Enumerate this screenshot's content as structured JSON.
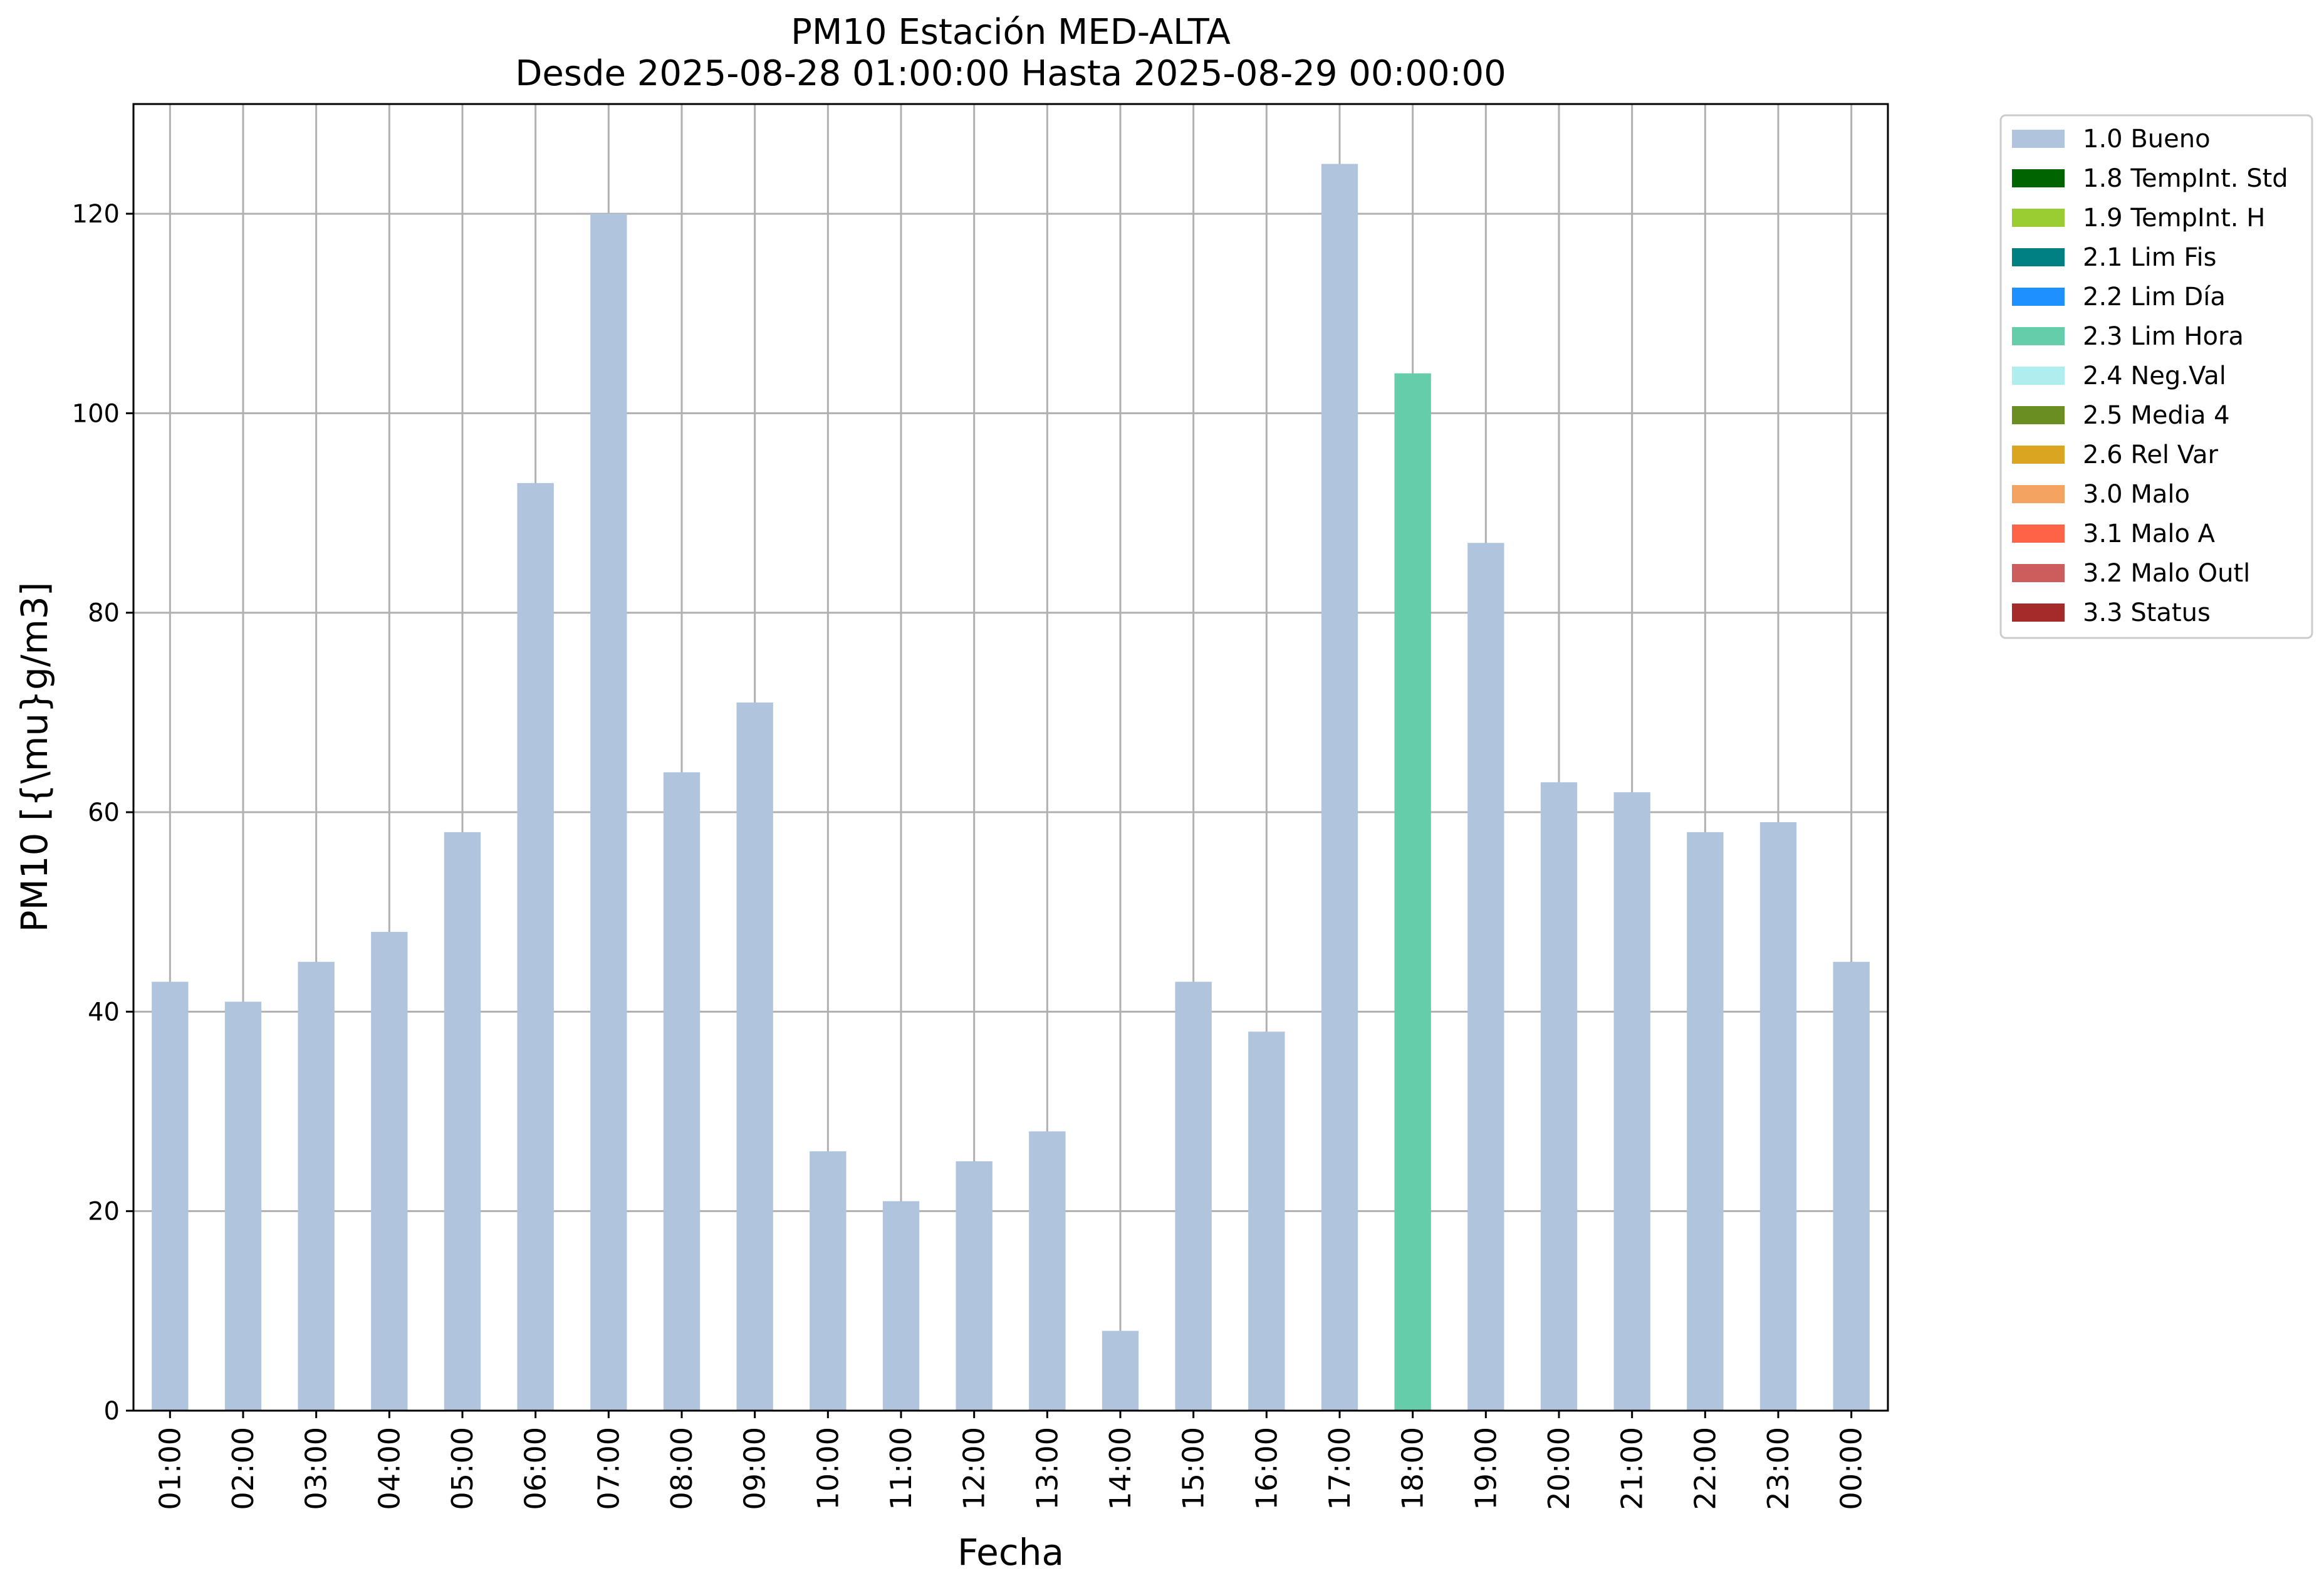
{
  "chart_data": {
    "type": "bar",
    "title": "PM10 Estación MED-ALTA",
    "subtitle": "Desde 2025-08-28 01:00:00 Hasta 2025-08-29 00:00:00",
    "xlabel": "Fecha",
    "ylabel": "PM10 [{\\mu}g/m3]",
    "ylim": [
      0,
      131
    ],
    "yticks": [
      0,
      20,
      40,
      60,
      80,
      100,
      120
    ],
    "grid": true,
    "legend_position": "outside-right-top",
    "categories": [
      "01:00",
      "02:00",
      "03:00",
      "04:00",
      "05:00",
      "06:00",
      "07:00",
      "08:00",
      "09:00",
      "10:00",
      "11:00",
      "12:00",
      "13:00",
      "14:00",
      "15:00",
      "16:00",
      "17:00",
      "18:00",
      "19:00",
      "20:00",
      "21:00",
      "22:00",
      "23:00",
      "00:00"
    ],
    "values": [
      43,
      41,
      45,
      48,
      58,
      93,
      120,
      64,
      71,
      26,
      21,
      25,
      28,
      8,
      43,
      38,
      125,
      104,
      87,
      63,
      62,
      58,
      59,
      45
    ],
    "flags": [
      "1.0 Bueno",
      "1.0 Bueno",
      "1.0 Bueno",
      "1.0 Bueno",
      "1.0 Bueno",
      "1.0 Bueno",
      "1.0 Bueno",
      "1.0 Bueno",
      "1.0 Bueno",
      "1.0 Bueno",
      "1.0 Bueno",
      "1.0 Bueno",
      "1.0 Bueno",
      "1.0 Bueno",
      "1.0 Bueno",
      "1.0 Bueno",
      "1.0 Bueno",
      "2.3 Lim Hora",
      "1.0 Bueno",
      "1.0 Bueno",
      "1.0 Bueno",
      "1.0 Bueno",
      "1.0 Bueno",
      "1.0 Bueno"
    ],
    "legend": [
      {
        "label": "1.0 Bueno",
        "color": "#b0c4de"
      },
      {
        "label": "1.8 TempInt. Std",
        "color": "#006400"
      },
      {
        "label": "1.9 TempInt. H",
        "color": "#9acd32"
      },
      {
        "label": "2.1 Lim Fis",
        "color": "#008080"
      },
      {
        "label": "2.2 Lim Día",
        "color": "#1e90ff"
      },
      {
        "label": "2.3 Lim Hora",
        "color": "#66cdaa"
      },
      {
        "label": "2.4 Neg.Val",
        "color": "#afeeee"
      },
      {
        "label": "2.5 Media 4",
        "color": "#6b8e23"
      },
      {
        "label": "2.6 Rel Var",
        "color": "#daa520"
      },
      {
        "label": "3.0 Malo",
        "color": "#f4a460"
      },
      {
        "label": "3.1 Malo A",
        "color": "#ff6347"
      },
      {
        "label": "3.2 Malo Outl",
        "color": "#cd5c5c"
      },
      {
        "label": "3.3 Status",
        "color": "#a52a2a"
      }
    ]
  }
}
